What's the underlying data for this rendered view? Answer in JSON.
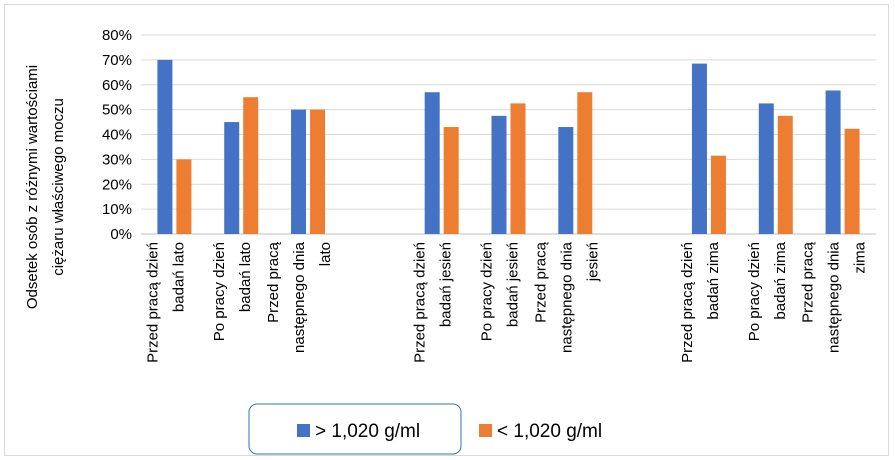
{
  "chart_data": {
    "type": "bar",
    "ylabel_lines": [
      "Odsetek osób z różnymi wartościami",
      "ciężaru właściwego moczu"
    ],
    "ylim": [
      0,
      0.8
    ],
    "yticks": [
      0,
      0.1,
      0.2,
      0.3,
      0.4,
      0.5,
      0.6,
      0.7,
      0.8
    ],
    "ytick_labels": [
      "0%",
      "10%",
      "20%",
      "30%",
      "40%",
      "50%",
      "60%",
      "70%",
      "80%"
    ],
    "grid": true,
    "legend_position": "bottom",
    "categories": [
      [
        "Przed pracą dzień",
        "badań lato"
      ],
      [
        "Po pracy dzień",
        "badań lato"
      ],
      [
        "Przed pracą",
        "następnego dnia",
        "lato"
      ],
      [],
      [
        "Przed pracą dzień",
        "badań jesień"
      ],
      [
        "Po pracy dzień",
        "badań jesień"
      ],
      [
        "Przed pracą",
        "następnego dnia",
        "jesień"
      ],
      [],
      [
        "Przed pracą dzień",
        "badań zima"
      ],
      [
        "Po pracy dzień",
        "badań zima"
      ],
      [
        "Przed pracą",
        "następnego dnia",
        "zima"
      ]
    ],
    "series": [
      {
        "name": "> 1,020 g/ml",
        "color": "#4472c4",
        "values": [
          0.7,
          0.45,
          0.5,
          null,
          0.57,
          0.475,
          0.43,
          null,
          0.685,
          0.525,
          0.577
        ]
      },
      {
        "name": "< 1,020 g/ml",
        "color": "#ed7d31",
        "values": [
          0.3,
          0.55,
          0.5,
          null,
          0.43,
          0.525,
          0.57,
          null,
          0.315,
          0.475,
          0.423
        ]
      }
    ]
  }
}
